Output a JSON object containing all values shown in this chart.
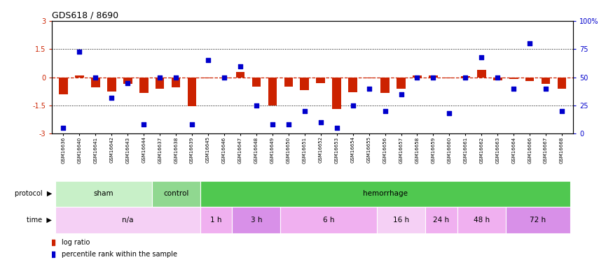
{
  "title": "GDS618 / 8690",
  "samples": [
    "GSM16636",
    "GSM16640",
    "GSM16641",
    "GSM16642",
    "GSM16643",
    "GSM16644",
    "GSM16637",
    "GSM16638",
    "GSM16639",
    "GSM16645",
    "GSM16646",
    "GSM16647",
    "GSM16648",
    "GSM16649",
    "GSM16650",
    "GSM16651",
    "GSM16652",
    "GSM16653",
    "GSM16654",
    "GSM16655",
    "GSM16656",
    "GSM16657",
    "GSM16658",
    "GSM16659",
    "GSM16660",
    "GSM16661",
    "GSM16662",
    "GSM16663",
    "GSM16664",
    "GSM16666",
    "GSM16667",
    "GSM16668"
  ],
  "log_ratio": [
    -0.9,
    0.1,
    -0.55,
    -0.75,
    -0.35,
    -0.85,
    -0.6,
    -0.55,
    -1.55,
    -0.05,
    -0.05,
    0.3,
    -0.5,
    -1.5,
    -0.5,
    -0.7,
    -0.3,
    -1.7,
    -0.8,
    -0.05,
    -0.85,
    -0.6,
    0.08,
    0.08,
    -0.05,
    0.05,
    0.4,
    -0.15,
    -0.1,
    -0.2,
    -0.35,
    -0.6
  ],
  "pct_rank": [
    5,
    73,
    50,
    32,
    45,
    8,
    50,
    50,
    8,
    65,
    50,
    60,
    25,
    8,
    8,
    20,
    10,
    5,
    25,
    40,
    20,
    35,
    50,
    50,
    18,
    50,
    68,
    50,
    40,
    80,
    40,
    20
  ],
  "protocol_groups": [
    {
      "label": "sham",
      "start": 0,
      "end": 5,
      "color": "#c8f0c8"
    },
    {
      "label": "control",
      "start": 6,
      "end": 8,
      "color": "#90d890"
    },
    {
      "label": "hemorrhage",
      "start": 9,
      "end": 31,
      "color": "#50c850"
    }
  ],
  "time_groups": [
    {
      "label": "n/a",
      "start": 0,
      "end": 8,
      "color": "#f5d0f5"
    },
    {
      "label": "1 h",
      "start": 9,
      "end": 10,
      "color": "#f0b0f0"
    },
    {
      "label": "3 h",
      "start": 11,
      "end": 13,
      "color": "#d890e8"
    },
    {
      "label": "6 h",
      "start": 14,
      "end": 19,
      "color": "#f0b0f0"
    },
    {
      "label": "16 h",
      "start": 20,
      "end": 22,
      "color": "#f5d0f5"
    },
    {
      "label": "24 h",
      "start": 23,
      "end": 24,
      "color": "#f0b0f0"
    },
    {
      "label": "48 h",
      "start": 25,
      "end": 27,
      "color": "#f0b0f0"
    },
    {
      "label": "72 h",
      "start": 28,
      "end": 31,
      "color": "#d890e8"
    }
  ],
  "ylim_left": [
    -3,
    3
  ],
  "ylim_right": [
    0,
    100
  ],
  "bar_color": "#cc2200",
  "dot_color": "#0000cc",
  "hline_color": "#cc2200",
  "dotline_color": "#000000",
  "bg_color": "#ffffff"
}
